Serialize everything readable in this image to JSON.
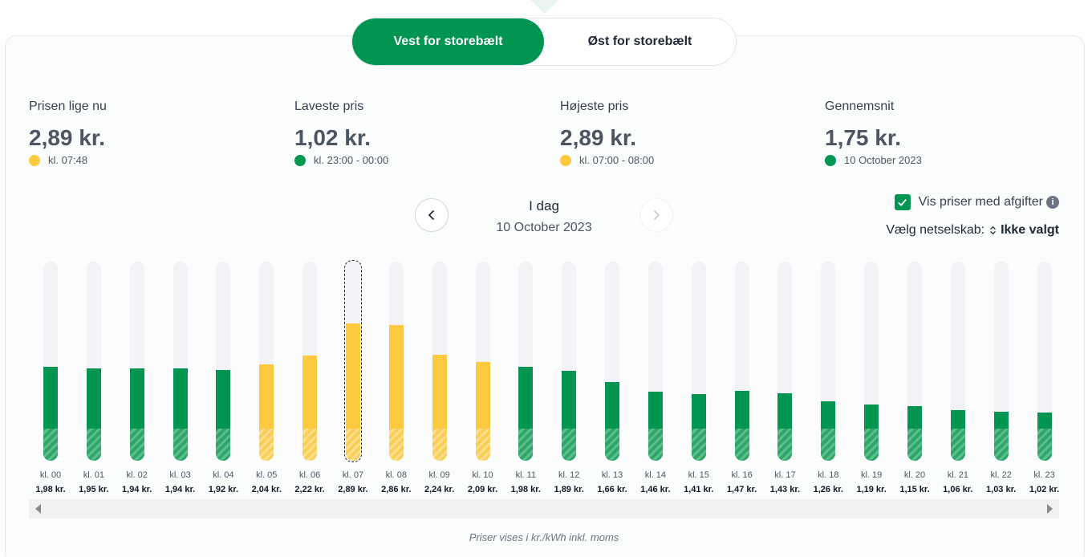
{
  "region": {
    "west_label": "Vest for storebælt",
    "east_label": "Øst for storebælt",
    "active": "west"
  },
  "stats": [
    {
      "label": "Prisen lige nu",
      "value": "2,89 kr.",
      "sub": "kl. 07:48",
      "dot_color": "#fcc93f"
    },
    {
      "label": "Laveste pris",
      "value": "1,02 kr.",
      "sub": "kl. 23:00 - 00:00",
      "dot_color": "#009550"
    },
    {
      "label": "Højeste pris",
      "value": "2,89 kr.",
      "sub": "kl. 07:00 - 08:00",
      "dot_color": "#fcc93f"
    },
    {
      "label": "Gennemsnit",
      "value": "1,75 kr.",
      "sub": "10 October 2023",
      "dot_color": "#009550"
    }
  ],
  "day_nav": {
    "title": "I dag",
    "date": "10 October 2023"
  },
  "options": {
    "show_with_fees_label": "Vis priser med afgifter",
    "show_with_fees_checked": true,
    "info_glyph": "i",
    "net_company_label": "Vælg netselskab:",
    "net_company_value": "Ikke valgt",
    "updown_glyph": "⌃\n⌄"
  },
  "chart_data": {
    "type": "bar",
    "categories": [
      "kl. 00",
      "kl. 01",
      "kl. 02",
      "kl. 03",
      "kl. 04",
      "kl. 05",
      "kl. 06",
      "kl. 07",
      "kl. 08",
      "kl. 09",
      "kl. 10",
      "kl. 11",
      "kl. 12",
      "kl. 13",
      "kl. 14",
      "kl. 15",
      "kl. 16",
      "kl. 17",
      "kl. 18",
      "kl. 19",
      "kl. 20",
      "kl. 21",
      "kl. 22",
      "kl. 23"
    ],
    "values": [
      1.98,
      1.95,
      1.94,
      1.94,
      1.92,
      2.04,
      2.22,
      2.89,
      2.86,
      2.24,
      2.09,
      1.98,
      1.89,
      1.66,
      1.46,
      1.41,
      1.47,
      1.43,
      1.26,
      1.19,
      1.15,
      1.06,
      1.03,
      1.02
    ],
    "value_labels": [
      "1,98 kr.",
      "1,95 kr.",
      "1,94 kr.",
      "1,94 kr.",
      "1,92 kr.",
      "2,04 kr.",
      "2,22 kr.",
      "2,89 kr.",
      "2,86 kr.",
      "2,24 kr.",
      "2,09 kr.",
      "1,98 kr.",
      "1,89 kr.",
      "1,66 kr.",
      "1,46 kr.",
      "1,41 kr.",
      "1,47 kr.",
      "1,43 kr.",
      "1,26 kr.",
      "1,19 kr.",
      "1,15 kr.",
      "1,06 kr.",
      "1,03 kr.",
      "1,02 kr."
    ],
    "highlight": [
      "green",
      "green",
      "green",
      "green",
      "green",
      "yellow",
      "yellow",
      "yellow",
      "yellow",
      "yellow",
      "yellow",
      "green",
      "green",
      "green",
      "green",
      "green",
      "green",
      "green",
      "green",
      "green",
      "green",
      "green",
      "green",
      "green"
    ],
    "fee_portion": 0.67,
    "selected_index": 7,
    "ylim": [
      0,
      4.2
    ],
    "colors": {
      "green": "#009550",
      "yellow": "#fcc93f"
    }
  },
  "footnote": "Priser vises i kr./kWh inkl. moms"
}
